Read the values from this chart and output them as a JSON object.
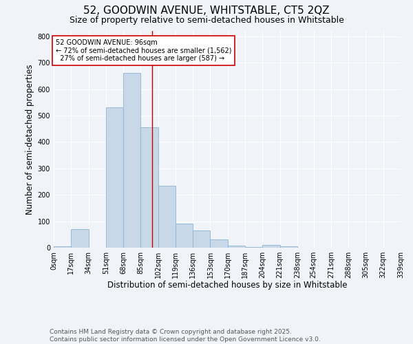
{
  "title": "52, GOODWIN AVENUE, WHITSTABLE, CT5 2QZ",
  "subtitle": "Size of property relative to semi-detached houses in Whitstable",
  "xlabel": "Distribution of semi-detached houses by size in Whitstable",
  "ylabel": "Number of semi-detached properties",
  "bar_color": "#c8d8e8",
  "bar_edge_color": "#8ab4d4",
  "bins": [
    0,
    17,
    34,
    51,
    68,
    85,
    102,
    119,
    136,
    153,
    170,
    187,
    204,
    221,
    238,
    254,
    271,
    288,
    305,
    322,
    339
  ],
  "bin_labels": [
    "0sqm",
    "17sqm",
    "34sqm",
    "51sqm",
    "68sqm",
    "85sqm",
    "102sqm",
    "119sqm",
    "136sqm",
    "153sqm",
    "170sqm",
    "187sqm",
    "204sqm",
    "221sqm",
    "238sqm",
    "254sqm",
    "271sqm",
    "288sqm",
    "305sqm",
    "322sqm",
    "339sqm"
  ],
  "counts": [
    5,
    70,
    0,
    530,
    660,
    455,
    235,
    90,
    65,
    30,
    8,
    3,
    10,
    6,
    0,
    0,
    0,
    0,
    0,
    0
  ],
  "property_size": 96,
  "vline_color": "#cc0000",
  "annotation_text": "52 GOODWIN AVENUE: 96sqm\n← 72% of semi-detached houses are smaller (1,562)\n  27% of semi-detached houses are larger (587) →",
  "annotation_box_color": "#ffffff",
  "annotation_box_edge": "#cc0000",
  "footer_text": "Contains HM Land Registry data © Crown copyright and database right 2025.\nContains public sector information licensed under the Open Government Licence v3.0.",
  "ylim": [
    0,
    820
  ],
  "yticks": [
    0,
    100,
    200,
    300,
    400,
    500,
    600,
    700,
    800
  ],
  "background_color": "#f0f4f8",
  "grid_color": "#ffffff",
  "title_fontsize": 11,
  "subtitle_fontsize": 9,
  "axis_label_fontsize": 8.5,
  "tick_fontsize": 7,
  "annotation_fontsize": 7,
  "footer_fontsize": 6.5
}
